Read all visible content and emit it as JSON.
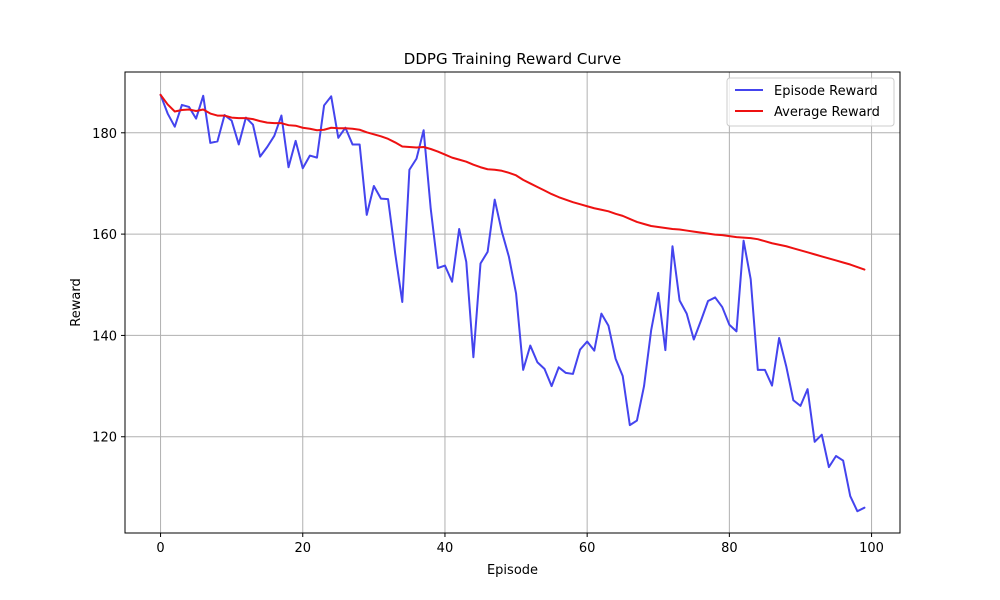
{
  "chart_data": {
    "type": "line",
    "title": "DDPG Training Reward Curve",
    "xlabel": "Episode",
    "ylabel": "Reward",
    "xlim": [
      -5,
      104
    ],
    "ylim": [
      101,
      192
    ],
    "xticks": [
      0,
      20,
      40,
      60,
      80,
      100
    ],
    "yticks": [
      120,
      140,
      160,
      180
    ],
    "grid": true,
    "legend_position": "top-right",
    "series": [
      {
        "name": "Episode Reward",
        "color": "#4444ee",
        "x": [
          0,
          1,
          2,
          3,
          4,
          5,
          6,
          7,
          8,
          9,
          10,
          11,
          12,
          13,
          14,
          15,
          16,
          17,
          18,
          19,
          20,
          21,
          22,
          23,
          24,
          25,
          26,
          27,
          28,
          29,
          30,
          31,
          32,
          33,
          34,
          35,
          36,
          37,
          38,
          39,
          40,
          41,
          42,
          43,
          44,
          45,
          46,
          47,
          48,
          49,
          50,
          51,
          52,
          53,
          54,
          55,
          56,
          57,
          58,
          59,
          60,
          61,
          62,
          63,
          64,
          65,
          66,
          67,
          68,
          69,
          70,
          71,
          72,
          73,
          74,
          75,
          76,
          77,
          78,
          79,
          80,
          81,
          82,
          83,
          84,
          85,
          86,
          87,
          88,
          89,
          90,
          91,
          92,
          93,
          94,
          95,
          96,
          97,
          98,
          99
        ],
        "values": [
          187.5,
          183.8,
          181.2,
          185.5,
          185.1,
          182.8,
          187.3,
          178.0,
          178.3,
          183.5,
          182.4,
          177.7,
          183.0,
          181.6,
          175.3,
          177.2,
          179.4,
          183.4,
          173.2,
          178.4,
          173.0,
          175.5,
          175.1,
          185.4,
          187.2,
          179.0,
          181.0,
          177.7,
          177.7,
          163.8,
          169.5,
          167.0,
          166.9,
          156.2,
          146.6,
          172.7,
          174.9,
          180.5,
          165.0,
          153.3,
          153.8,
          150.6,
          161.0,
          154.5,
          135.7,
          154.2,
          156.5,
          166.8,
          160.5,
          155.5,
          148.3,
          133.2,
          138.0,
          134.7,
          133.4,
          130.0,
          133.7,
          132.6,
          132.4,
          137.2,
          138.8,
          137.0,
          144.3,
          141.9,
          135.4,
          132.0,
          122.3,
          123.2,
          130.0,
          141.0,
          148.4,
          137.1,
          157.6,
          146.9,
          144.3,
          139.2,
          142.9,
          146.8,
          147.5,
          145.6,
          142.1,
          140.8,
          158.7,
          151.1,
          133.2,
          133.2,
          130.1,
          139.5,
          133.9,
          127.2,
          126.1,
          129.4,
          119.0,
          120.4,
          114.0,
          116.2,
          115.3,
          108.3,
          105.3,
          106.0
        ]
      },
      {
        "name": "Average Reward",
        "color": "#ee1111",
        "x": [
          0,
          1,
          2,
          3,
          4,
          5,
          6,
          7,
          8,
          9,
          10,
          11,
          12,
          13,
          14,
          15,
          16,
          17,
          18,
          19,
          20,
          21,
          22,
          23,
          24,
          25,
          26,
          27,
          28,
          29,
          30,
          31,
          32,
          33,
          34,
          35,
          36,
          37,
          38,
          39,
          40,
          41,
          42,
          43,
          44,
          45,
          46,
          47,
          48,
          49,
          50,
          51,
          52,
          53,
          54,
          55,
          56,
          57,
          58,
          59,
          60,
          61,
          62,
          63,
          64,
          65,
          66,
          67,
          68,
          69,
          70,
          71,
          72,
          73,
          74,
          75,
          76,
          77,
          78,
          79,
          80,
          81,
          82,
          83,
          84,
          85,
          86,
          87,
          88,
          89,
          90,
          91,
          92,
          93,
          94,
          95,
          96,
          97,
          98,
          99
        ],
        "values": [
          187.5,
          185.6,
          184.2,
          184.5,
          184.6,
          184.3,
          184.6,
          183.8,
          183.4,
          183.4,
          183.0,
          182.9,
          182.9,
          182.7,
          182.3,
          182.0,
          181.9,
          181.9,
          181.5,
          181.4,
          181.0,
          180.8,
          180.5,
          180.6,
          181.0,
          180.9,
          180.9,
          180.8,
          180.6,
          180.1,
          179.7,
          179.3,
          178.8,
          178.1,
          177.3,
          177.2,
          177.1,
          177.2,
          176.8,
          176.3,
          175.7,
          175.1,
          174.7,
          174.3,
          173.7,
          173.2,
          172.8,
          172.7,
          172.5,
          172.1,
          171.6,
          170.7,
          170.0,
          169.3,
          168.6,
          167.9,
          167.3,
          166.8,
          166.3,
          165.9,
          165.5,
          165.1,
          164.8,
          164.5,
          164.0,
          163.6,
          163.0,
          162.4,
          162.0,
          161.6,
          161.4,
          161.2,
          161.0,
          160.9,
          160.7,
          160.5,
          160.3,
          160.1,
          159.9,
          159.8,
          159.6,
          159.4,
          159.3,
          159.2,
          159.0,
          158.6,
          158.2,
          157.9,
          157.6,
          157.2,
          156.8,
          156.4,
          156.0,
          155.6,
          155.2,
          154.8,
          154.4,
          154.0,
          153.5,
          153.0
        ]
      }
    ]
  }
}
